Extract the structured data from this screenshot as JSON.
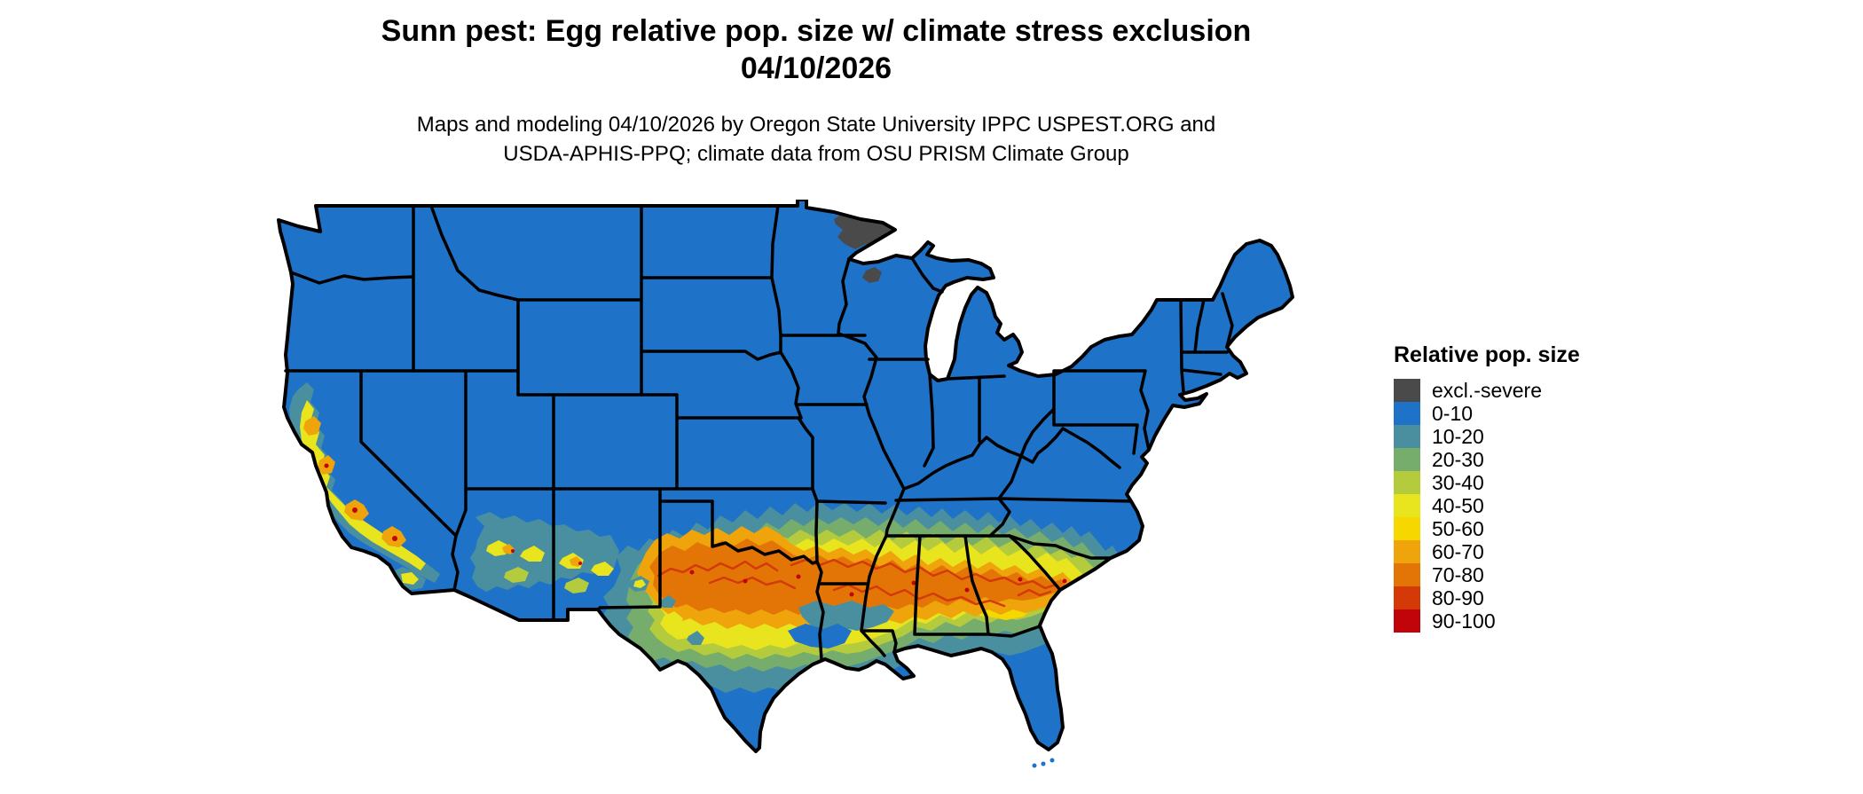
{
  "title": {
    "line1": "Sunn pest: Egg relative pop. size w/ climate stress exclusion",
    "line2": "04/10/2026"
  },
  "subtitle": {
    "line1": "Maps and modeling 04/10/2026 by Oregon State University IPPC USPEST.ORG and",
    "line2": "USDA-APHIS-PPQ; climate data from OSU PRISM Climate Group"
  },
  "legend": {
    "title": "Relative pop. size",
    "items": [
      {
        "label": "excl.-severe",
        "color": "#4a4a4a"
      },
      {
        "label": "0-10",
        "color": "#1e72c8"
      },
      {
        "label": "10-20",
        "color": "#4a8fa0"
      },
      {
        "label": "20-30",
        "color": "#76ac6c"
      },
      {
        "label": "30-40",
        "color": "#b3cb3c"
      },
      {
        "label": "40-50",
        "color": "#e8e41e"
      },
      {
        "label": "50-60",
        "color": "#f6d800"
      },
      {
        "label": "60-70",
        "color": "#eea40a"
      },
      {
        "label": "70-80",
        "color": "#e37507"
      },
      {
        "label": "80-90",
        "color": "#d33a08"
      },
      {
        "label": "90-100",
        "color": "#c00409"
      }
    ]
  },
  "map": {
    "base_color": "#1e72c8",
    "border_color": "#000000",
    "background_color": "#ffffff"
  },
  "chart_data": {
    "type": "heatmap",
    "title": "Sunn pest: Egg relative pop. size w/ climate stress exclusion 04/10/2026",
    "legend_title": "Relative pop. size",
    "categories": [
      "excl.-severe",
      "0-10",
      "10-20",
      "20-30",
      "30-40",
      "40-50",
      "50-60",
      "60-70",
      "70-80",
      "80-90",
      "90-100"
    ],
    "colors": [
      "#4a4a4a",
      "#1e72c8",
      "#4a8fa0",
      "#76ac6c",
      "#b3cb3c",
      "#e8e41e",
      "#f6d800",
      "#eea40a",
      "#e37507",
      "#d33a08",
      "#c00409"
    ],
    "region_values": [
      {
        "region": "Pacific Northwest, Rockies, northern Plains, Midwest, Northeast, Appalachians",
        "value": "0-10"
      },
      {
        "region": "Northeastern Minnesota (Lake Superior arrowhead)",
        "value": "excl.-severe"
      },
      {
        "region": "Small patch in northern Wisconsin",
        "value": "excl.-severe"
      },
      {
        "region": "California Central Valley, coast ranges and southern California mountains",
        "value": "10-80 mosaic with small 80-100 specks"
      },
      {
        "region": "Central Arizona (Mogollon Rim diagonal) and scattered New Mexico spots",
        "value": "10-80 mosaic"
      },
      {
        "region": "Band across north/central Texas, Oklahoma Red River valley, Arkansas, northern Louisiana, central Mississippi, Alabama, Georgia, western South Carolina",
        "value": "10-60 gradient with 60-80 core and 80-90 squiggle contours"
      },
      {
        "region": "South Texas, Gulf coast, Florida peninsula, Atlantic coastal plain",
        "value": "0-10 with 10-20 fringe"
      }
    ]
  }
}
